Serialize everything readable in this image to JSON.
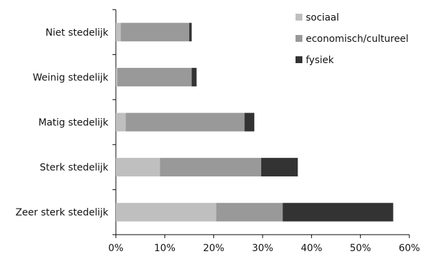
{
  "chart_data": {
    "type": "bar",
    "orientation": "horizontal",
    "stacked": true,
    "title": "",
    "xlabel": "",
    "ylabel": "",
    "categories": [
      "Niet stedelijk",
      "Weinig stedelijk",
      "Matig stedelijk",
      "Sterk stedelijk",
      "Zeer sterk stedelijk"
    ],
    "series": [
      {
        "name": "sociaal",
        "color": "#bfbfbf",
        "values": [
          1.0,
          0.3,
          2.0,
          9.0,
          20.5
        ]
      },
      {
        "name": "economisch/cultureel",
        "color": "#999999",
        "values": [
          14.0,
          15.2,
          24.3,
          20.7,
          13.6
        ]
      },
      {
        "name": "fysiek",
        "color": "#333333",
        "values": [
          0.5,
          1.0,
          2.0,
          7.5,
          22.6
        ]
      }
    ],
    "xlim": [
      0,
      60
    ],
    "xticks": [
      "0%",
      "10%",
      "20%",
      "30%",
      "40%",
      "50%",
      "60%"
    ],
    "grid": false,
    "legend": "top-right"
  }
}
